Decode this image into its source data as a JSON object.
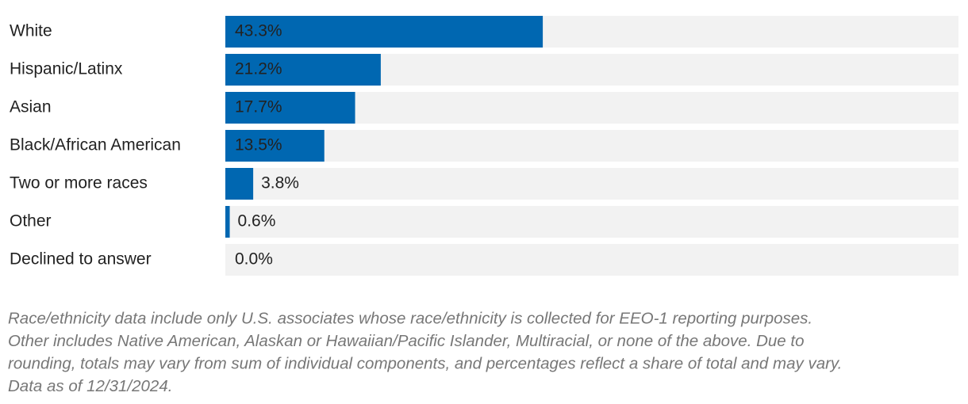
{
  "chart_data": {
    "type": "bar",
    "orientation": "horizontal",
    "categories": [
      "White",
      "Hispanic/Latinx",
      "Asian",
      "Black/African American",
      "Two or more races",
      "Other",
      "Declined to answer"
    ],
    "values": [
      43.3,
      21.2,
      17.7,
      13.5,
      3.8,
      0.6,
      0.0
    ],
    "value_labels": [
      "43.3%",
      "21.2%",
      "17.7%",
      "13.5%",
      "3.8%",
      "0.6%",
      "0.0%"
    ],
    "color": "#0067b1",
    "xlim": [
      0,
      100
    ],
    "footnote": [
      "Race/ethnicity data include only U.S. associates whose race/ethnicity is collected for EEO-1 reporting purposes.",
      "Other includes Native American, Alaskan or Hawaiian/Pacific Islander, Multiracial, or none of the above. Due to",
      "rounding, totals may vary from sum of individual components, and percentages reflect a share of total and may vary.",
      "Data as of 12/31/2024."
    ]
  }
}
